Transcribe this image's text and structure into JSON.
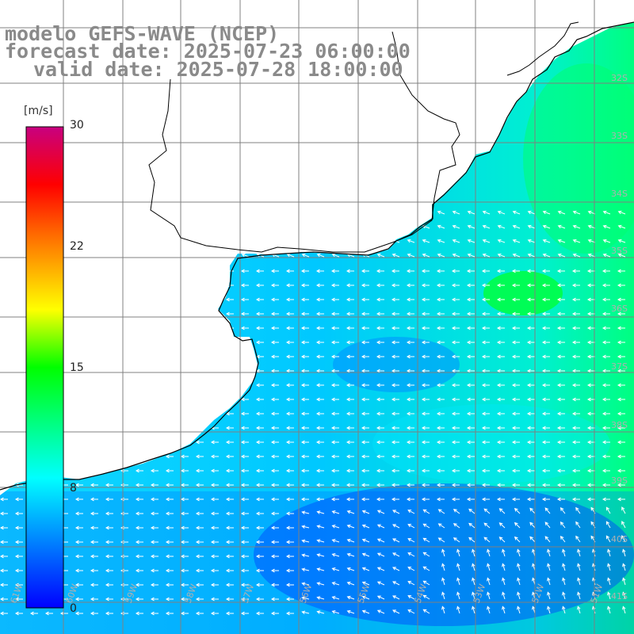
{
  "title": {
    "model": "modelo GEFS-WAVE (NCEP)",
    "forecast": "forecast date: 2025-07-23 06:00:00",
    "valid": "valid date: 2025-07-28 18:00:00"
  },
  "colorbar": {
    "unit": "[m/s]",
    "min": 0,
    "max": 30,
    "ticks": [
      "0",
      "8",
      "15",
      "22",
      "30"
    ],
    "colors": [
      "#0000ff",
      "#00ffff",
      "#00ff00",
      "#ffff00",
      "#ff0000",
      "#c80080"
    ]
  },
  "axes": {
    "lat_labels": [
      "32S",
      "33S",
      "34S",
      "35S",
      "36S",
      "37S",
      "38S",
      "39S",
      "40S",
      "41S"
    ],
    "lon_labels": [
      "61W",
      "60W",
      "59W",
      "58W",
      "57W",
      "56W",
      "55W",
      "54W",
      "53W",
      "52W",
      "51W"
    ]
  },
  "colors": {
    "land": "#ffffff",
    "coast": "#000000",
    "grid": "#808080",
    "arrow": "#ffffff",
    "header_text": "#8a8a8a"
  }
}
